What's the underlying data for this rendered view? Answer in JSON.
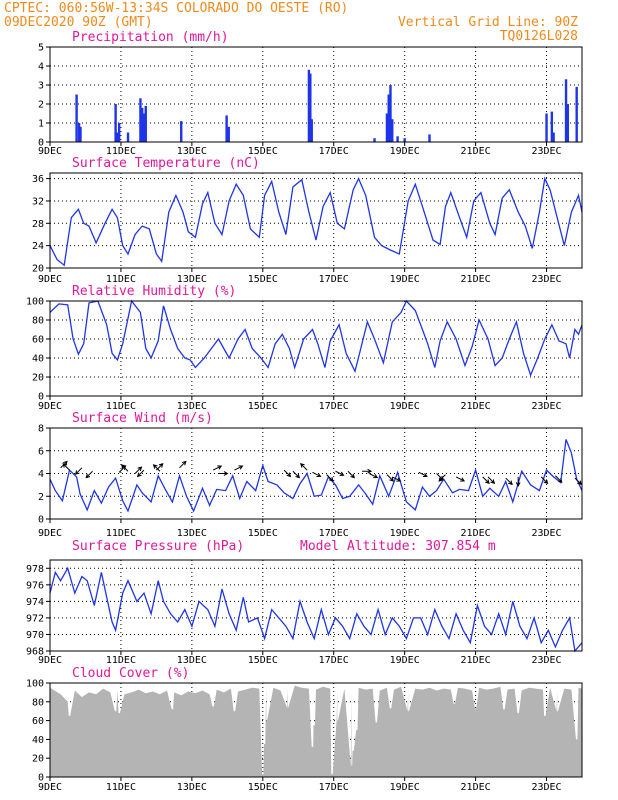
{
  "header": {
    "station": "CPTEC:   060:56W-13:34S  COLORADO DO OESTE (RO)",
    "run": "09DEC2020 90Z (GMT)",
    "grid_line": "Vertical Grid Line: 90Z",
    "code": "TQ0126L028"
  },
  "colors": {
    "line": "#1f35e8",
    "cloud": "#b4b4b4",
    "title": "#e0189a",
    "header": "#f08a1c"
  },
  "x_axis": {
    "labels": [
      "9DEC",
      "11DEC",
      "13DEC",
      "15DEC",
      "17DEC",
      "19DEC",
      "21DEC",
      "23DEC"
    ],
    "label_days": [
      0,
      2,
      4,
      6,
      8,
      10,
      12,
      14
    ],
    "range_days": [
      0,
      15
    ]
  },
  "extra_title": "Model Altitude: 307.854 m",
  "chart_data": [
    {
      "type": "bar",
      "title": "Precipitation (mm/h)",
      "ylim": [
        0,
        5
      ],
      "yticks": [
        0,
        1,
        2,
        3,
        4,
        5
      ],
      "grid": true,
      "bars": [
        [
          0.75,
          2.5
        ],
        [
          0.82,
          1.0
        ],
        [
          0.86,
          0.8
        ],
        [
          1.85,
          2.0
        ],
        [
          1.9,
          0.5
        ],
        [
          1.95,
          1.0
        ],
        [
          2.2,
          0.5
        ],
        [
          2.55,
          2.3
        ],
        [
          2.6,
          1.8
        ],
        [
          2.65,
          1.5
        ],
        [
          2.7,
          1.9
        ],
        [
          3.7,
          1.1
        ],
        [
          4.98,
          1.4
        ],
        [
          5.04,
          0.8
        ],
        [
          7.3,
          3.8
        ],
        [
          7.34,
          3.6
        ],
        [
          7.38,
          1.2
        ],
        [
          9.15,
          0.2
        ],
        [
          9.5,
          1.5
        ],
        [
          9.55,
          2.5
        ],
        [
          9.6,
          3.0
        ],
        [
          9.65,
          1.2
        ],
        [
          9.8,
          0.3
        ],
        [
          10.0,
          0.2
        ],
        [
          10.7,
          0.4
        ],
        [
          14.0,
          1.5
        ],
        [
          14.15,
          1.6
        ],
        [
          14.2,
          0.5
        ],
        [
          14.55,
          3.3
        ],
        [
          14.6,
          2.0
        ],
        [
          14.85,
          2.9
        ]
      ]
    },
    {
      "type": "line",
      "title": "Surface Temperature (nC)",
      "ylim": [
        20,
        37
      ],
      "yticks": [
        20,
        24,
        28,
        32,
        36
      ],
      "grid": true,
      "x": [
        0,
        0.2,
        0.4,
        0.6,
        0.8,
        0.95,
        1.1,
        1.3,
        1.55,
        1.75,
        1.9,
        2.05,
        2.2,
        2.4,
        2.6,
        2.8,
        3.0,
        3.15,
        3.35,
        3.55,
        3.75,
        3.9,
        4.1,
        4.3,
        4.45,
        4.65,
        4.85,
        5.05,
        5.25,
        5.45,
        5.65,
        5.9,
        6.05,
        6.25,
        6.45,
        6.65,
        6.85,
        7.1,
        7.3,
        7.5,
        7.7,
        7.9,
        8.1,
        8.3,
        8.55,
        8.7,
        8.9,
        9.15,
        9.35,
        9.6,
        9.85,
        10.1,
        10.3,
        10.55,
        10.8,
        11.0,
        11.15,
        11.3,
        11.55,
        11.75,
        11.95,
        12.15,
        12.4,
        12.55,
        12.75,
        12.95,
        13.2,
        13.4,
        13.6,
        13.8,
        13.95,
        14.1,
        14.3,
        14.5,
        14.7,
        14.9,
        15.0
      ],
      "y": [
        24,
        21.5,
        20.5,
        29,
        30.5,
        28,
        27.5,
        24.5,
        28,
        30.5,
        29,
        24,
        22.5,
        26,
        27.5,
        27,
        22.5,
        21.2,
        30,
        33,
        30,
        26.5,
        25.5,
        31.5,
        33.5,
        28,
        26,
        32,
        35,
        33,
        27,
        25.5,
        33,
        35.5,
        30,
        26,
        34.5,
        35.8,
        30,
        25,
        31,
        33.5,
        28,
        27,
        34,
        36,
        33,
        25.5,
        24,
        23.2,
        22.5,
        32,
        35,
        30,
        25,
        24.2,
        31,
        33.5,
        29,
        25.5,
        32,
        33.5,
        28,
        26,
        32.5,
        34,
        30,
        27.5,
        23.5,
        30,
        36,
        34,
        29,
        24,
        30,
        33,
        30
      ]
    },
    {
      "type": "line",
      "title": "Relative Humidity (%)",
      "ylim": [
        0,
        100
      ],
      "yticks": [
        0,
        20,
        40,
        60,
        80,
        100
      ],
      "grid": true,
      "x": [
        0,
        0.25,
        0.5,
        0.65,
        0.8,
        0.95,
        1.1,
        1.35,
        1.6,
        1.75,
        1.9,
        2.05,
        2.3,
        2.55,
        2.7,
        2.85,
        3.05,
        3.2,
        3.4,
        3.6,
        3.8,
        3.95,
        4.1,
        4.35,
        4.55,
        4.75,
        4.9,
        5.05,
        5.3,
        5.5,
        5.7,
        5.95,
        6.15,
        6.35,
        6.55,
        6.75,
        6.9,
        7.15,
        7.4,
        7.55,
        7.75,
        7.9,
        8.15,
        8.35,
        8.6,
        8.75,
        8.95,
        9.15,
        9.4,
        9.65,
        9.9,
        10.05,
        10.3,
        10.5,
        10.65,
        10.85,
        11.0,
        11.2,
        11.45,
        11.7,
        11.9,
        12.1,
        12.35,
        12.55,
        12.75,
        12.95,
        13.15,
        13.35,
        13.55,
        13.75,
        13.95,
        14.15,
        14.35,
        14.55,
        14.65,
        14.8,
        14.9,
        15.0
      ],
      "y": [
        88,
        97,
        96,
        60,
        44,
        55,
        98,
        100,
        75,
        45,
        38,
        55,
        100,
        88,
        50,
        40,
        58,
        95,
        70,
        50,
        40,
        38,
        30,
        40,
        50,
        60,
        50,
        40,
        60,
        70,
        50,
        40,
        30,
        55,
        65,
        50,
        30,
        60,
        70,
        55,
        30,
        58,
        75,
        45,
        26,
        48,
        78,
        60,
        35,
        78,
        88,
        100,
        90,
        70,
        55,
        30,
        58,
        78,
        60,
        32,
        52,
        80,
        60,
        32,
        40,
        60,
        78,
        45,
        22,
        40,
        60,
        75,
        58,
        55,
        40,
        70,
        65,
        75
      ]
    },
    {
      "type": "line",
      "title": "Surface Wind (m/s)",
      "ylim": [
        0,
        8
      ],
      "yticks": [
        0,
        2,
        4,
        6,
        8
      ],
      "grid": true,
      "x": [
        0,
        0.15,
        0.35,
        0.55,
        0.75,
        0.85,
        1.05,
        1.25,
        1.45,
        1.65,
        1.85,
        2.05,
        2.2,
        2.45,
        2.6,
        2.85,
        3.05,
        3.25,
        3.45,
        3.65,
        3.85,
        4.05,
        4.3,
        4.5,
        4.7,
        4.95,
        5.15,
        5.35,
        5.55,
        5.8,
        6.0,
        6.15,
        6.4,
        6.6,
        6.85,
        7.05,
        7.25,
        7.45,
        7.65,
        7.85,
        8.05,
        8.25,
        8.45,
        8.7,
        8.9,
        9.1,
        9.3,
        9.55,
        9.8,
        10.05,
        10.3,
        10.5,
        10.7,
        10.9,
        11.1,
        11.35,
        11.55,
        11.8,
        12.0,
        12.2,
        12.4,
        12.65,
        12.85,
        13.05,
        13.3,
        13.55,
        13.8,
        14.0,
        14.2,
        14.4,
        14.55,
        14.7,
        14.85,
        15.0
      ],
      "y": [
        3.5,
        2.5,
        1.6,
        4.3,
        3.7,
        2.2,
        0.8,
        2.5,
        1.4,
        2.8,
        3.6,
        1.6,
        0.7,
        3.0,
        2.3,
        1.5,
        3.8,
        2.6,
        1.5,
        3.8,
        2.0,
        0.7,
        2.7,
        1.2,
        2.6,
        2.5,
        3.8,
        1.8,
        3.3,
        2.5,
        4.7,
        3.3,
        3.0,
        2.3,
        1.8,
        3.1,
        4.0,
        2.0,
        2.1,
        3.7,
        3.0,
        1.8,
        2.0,
        3.0,
        2.2,
        1.3,
        3.8,
        2.0,
        4.1,
        1.5,
        0.8,
        2.8,
        2.0,
        2.5,
        3.5,
        2.3,
        2.6,
        2.5,
        4.3,
        2.0,
        2.7,
        2.0,
        3.3,
        1.5,
        4.2,
        3.0,
        2.5,
        4.3,
        3.7,
        3.2,
        7.0,
        5.8,
        3.5,
        2.5
      ],
      "arrows": [
        [
          0.3,
          4.5,
          1,
          1
        ],
        [
          0.55,
          4.3,
          -1,
          1
        ],
        [
          0.9,
          4.5,
          -1,
          -1
        ],
        [
          1.2,
          4.2,
          -1,
          -1
        ],
        [
          1.95,
          4.1,
          1,
          1
        ],
        [
          2.2,
          4.2,
          -1,
          1
        ],
        [
          2.4,
          4.0,
          1,
          1
        ],
        [
          2.65,
          4.3,
          -1,
          -1
        ],
        [
          3.0,
          4.3,
          1,
          1
        ],
        [
          3.1,
          4.2,
          -1,
          1
        ],
        [
          3.65,
          4.5,
          1,
          1
        ],
        [
          4.6,
          4.3,
          1,
          0.5
        ],
        [
          4.75,
          4.0,
          1,
          0
        ],
        [
          5.2,
          4.3,
          1,
          0.5
        ],
        [
          6.6,
          4.3,
          1,
          -1
        ],
        [
          6.85,
          4.2,
          1,
          -1
        ],
        [
          7.25,
          4.3,
          -1,
          1
        ],
        [
          7.4,
          4.1,
          1,
          -0.5
        ],
        [
          7.8,
          3.9,
          1,
          -1
        ],
        [
          8.05,
          4.2,
          1,
          -0.5
        ],
        [
          8.4,
          4.2,
          1,
          -1
        ],
        [
          8.8,
          4.2,
          1,
          0
        ],
        [
          9.0,
          4.0,
          1,
          -0.5
        ],
        [
          9.5,
          3.9,
          1,
          -1
        ],
        [
          9.65,
          3.7,
          1,
          -0.5
        ],
        [
          10.4,
          4.1,
          1,
          -0.5
        ],
        [
          10.9,
          4.0,
          1,
          -1
        ],
        [
          11.15,
          3.9,
          -1,
          -1
        ],
        [
          11.45,
          3.7,
          1,
          -0.5
        ],
        [
          12.2,
          3.7,
          1,
          -1
        ],
        [
          12.35,
          3.7,
          1,
          -1
        ],
        [
          12.85,
          3.6,
          1,
          -1
        ],
        [
          13.2,
          3.7,
          0,
          -1
        ],
        [
          13.85,
          3.7,
          1,
          -1
        ],
        [
          14.25,
          3.8,
          1,
          -1
        ],
        [
          14.8,
          3.6,
          1,
          -1
        ]
      ]
    },
    {
      "type": "line",
      "title": "Surface Pressure (hPa)",
      "ylim": [
        968,
        979
      ],
      "yticks": [
        968,
        970,
        972,
        974,
        976,
        978
      ],
      "grid": true,
      "x": [
        0,
        0.15,
        0.3,
        0.5,
        0.7,
        0.9,
        1.05,
        1.25,
        1.45,
        1.6,
        1.75,
        1.85,
        2.05,
        2.2,
        2.45,
        2.65,
        2.85,
        3.05,
        3.2,
        3.4,
        3.6,
        3.8,
        4.0,
        4.2,
        4.45,
        4.65,
        4.85,
        5.05,
        5.25,
        5.45,
        5.6,
        5.85,
        6.05,
        6.25,
        6.45,
        6.65,
        6.85,
        7.05,
        7.25,
        7.45,
        7.65,
        7.85,
        8.05,
        8.25,
        8.45,
        8.65,
        8.85,
        9.05,
        9.25,
        9.45,
        9.65,
        9.85,
        10.05,
        10.25,
        10.45,
        10.65,
        10.85,
        11.05,
        11.25,
        11.45,
        11.65,
        11.85,
        12.05,
        12.25,
        12.45,
        12.65,
        12.85,
        13.05,
        13.25,
        13.45,
        13.65,
        13.85,
        14.05,
        14.25,
        14.45,
        14.65,
        14.8,
        15.0
      ],
      "y": [
        975,
        977.5,
        976.5,
        978,
        975,
        977,
        976.5,
        973.5,
        977.5,
        974.5,
        971.5,
        970.5,
        975,
        976.5,
        974,
        975,
        972.5,
        976.5,
        974,
        972.5,
        971.5,
        973,
        971,
        974,
        973,
        971,
        975.5,
        972.5,
        970.5,
        974.5,
        971.5,
        972,
        969.5,
        973,
        972,
        971,
        969.5,
        974,
        971.5,
        969.5,
        973,
        970,
        972,
        971,
        969.5,
        972.5,
        971,
        970,
        973,
        970,
        972,
        971,
        969.5,
        972,
        972,
        970,
        973,
        971,
        969.5,
        972.5,
        970.5,
        969,
        973.5,
        971,
        970,
        972.5,
        970,
        974,
        971,
        969.5,
        972,
        969,
        970.5,
        968.5,
        970.5,
        972,
        968,
        969
      ]
    },
    {
      "type": "area",
      "title": "Cloud Cover (%)",
      "ylim": [
        0,
        100
      ],
      "yticks": [
        0,
        20,
        40,
        60,
        80,
        100
      ],
      "grid": true,
      "x": [
        0,
        0.3,
        0.5,
        0.7,
        0.9,
        1.1,
        1.3,
        1.5,
        1.7,
        1.9,
        2.1,
        2.3,
        2.5,
        2.7,
        2.9,
        3.1,
        3.3,
        3.5,
        3.7,
        3.9,
        4.1,
        4.3,
        4.5,
        4.7,
        4.9,
        5.1,
        5.3,
        5.5,
        5.7,
        5.9,
        6.1,
        6.3,
        6.5,
        6.7,
        6.9,
        7.1,
        7.3,
        7.5,
        7.7,
        7.9,
        8.1,
        8.3,
        8.5,
        8.7,
        8.9,
        9.1,
        9.3,
        9.5,
        9.7,
        9.9,
        10.1,
        10.3,
        10.5,
        10.7,
        10.9,
        11.1,
        11.3,
        11.5,
        11.7,
        11.9,
        12.1,
        12.3,
        12.5,
        12.7,
        12.9,
        13.1,
        13.3,
        13.5,
        13.7,
        13.9,
        14.1,
        14.3,
        14.5,
        14.7,
        14.9,
        15.0
      ],
      "y": [
        95,
        88,
        80,
        92,
        85,
        90,
        88,
        94,
        90,
        92,
        88,
        90,
        93,
        89,
        91,
        88,
        92,
        90,
        87,
        91,
        89,
        92,
        88,
        93,
        90,
        94,
        91,
        93,
        95,
        94,
        96,
        95,
        92,
        94,
        97,
        95,
        94,
        93,
        96,
        94,
        92,
        94,
        96,
        95,
        93,
        94,
        92,
        95,
        93,
        96,
        92,
        94,
        93,
        95,
        92,
        94,
        93,
        95,
        94,
        92,
        95,
        93,
        94,
        96,
        93,
        94,
        92,
        95,
        94,
        93,
        95,
        92,
        94,
        93,
        95,
        94
      ],
      "dips": [
        [
          0.55,
          65
        ],
        [
          1.85,
          70
        ],
        [
          1.95,
          68
        ],
        [
          3.45,
          72
        ],
        [
          4.6,
          75
        ],
        [
          5.2,
          70
        ],
        [
          6.0,
          3
        ],
        [
          6.05,
          35
        ],
        [
          6.1,
          60
        ],
        [
          6.7,
          74
        ],
        [
          7.4,
          32
        ],
        [
          7.45,
          55
        ],
        [
          7.95,
          3
        ],
        [
          8.1,
          60
        ],
        [
          8.5,
          12
        ],
        [
          8.55,
          28
        ],
        [
          8.65,
          50
        ],
        [
          9.2,
          58
        ],
        [
          9.6,
          73
        ],
        [
          10.1,
          70
        ],
        [
          11.4,
          78
        ],
        [
          12.0,
          73
        ],
        [
          12.8,
          72
        ],
        [
          13.2,
          68
        ],
        [
          13.95,
          65
        ],
        [
          14.3,
          70
        ],
        [
          14.85,
          40
        ]
      ]
    }
  ]
}
